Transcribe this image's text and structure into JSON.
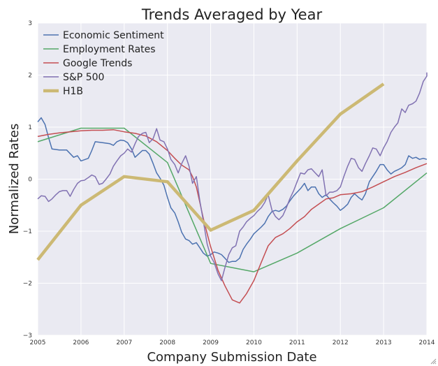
{
  "chart_data": {
    "type": "line",
    "title": "Trends Averaged by Year",
    "xlabel": "Company Submission Date",
    "ylabel": "Normalized Rates",
    "xlim": [
      2005,
      2014
    ],
    "ylim": [
      -3,
      3
    ],
    "x_ticks": [
      "2005",
      "2006",
      "2007",
      "2008",
      "2009",
      "2010",
      "2011",
      "2012",
      "2013",
      "2014"
    ],
    "y_ticks": [
      "3",
      "2",
      "1",
      "0",
      "−1",
      "−2",
      "−3"
    ],
    "grid": true,
    "legend_position": "top-left",
    "background": "#eaeaf2",
    "series": [
      {
        "name": "Economic Sentiment",
        "color": "#4c72b0",
        "width": 1.5,
        "points": [
          [
            2005.0,
            1.1
          ],
          [
            2005.08,
            1.18
          ],
          [
            2005.17,
            1.05
          ],
          [
            2005.25,
            0.8
          ],
          [
            2005.33,
            0.58
          ],
          [
            2005.5,
            0.56
          ],
          [
            2005.67,
            0.56
          ],
          [
            2005.83,
            0.42
          ],
          [
            2005.92,
            0.45
          ],
          [
            2006.0,
            0.35
          ],
          [
            2006.17,
            0.4
          ],
          [
            2006.25,
            0.55
          ],
          [
            2006.33,
            0.72
          ],
          [
            2006.5,
            0.7
          ],
          [
            2006.67,
            0.68
          ],
          [
            2006.75,
            0.65
          ],
          [
            2006.83,
            0.72
          ],
          [
            2006.92,
            0.75
          ],
          [
            2007.0,
            0.74
          ],
          [
            2007.08,
            0.7
          ],
          [
            2007.17,
            0.58
          ],
          [
            2007.25,
            0.42
          ],
          [
            2007.33,
            0.48
          ],
          [
            2007.42,
            0.55
          ],
          [
            2007.5,
            0.55
          ],
          [
            2007.58,
            0.48
          ],
          [
            2007.67,
            0.3
          ],
          [
            2007.75,
            0.12
          ],
          [
            2007.83,
            0.02
          ],
          [
            2007.92,
            -0.12
          ],
          [
            2008.0,
            -0.35
          ],
          [
            2008.08,
            -0.55
          ],
          [
            2008.17,
            -0.65
          ],
          [
            2008.25,
            -0.82
          ],
          [
            2008.33,
            -1.02
          ],
          [
            2008.42,
            -1.15
          ],
          [
            2008.5,
            -1.18
          ],
          [
            2008.58,
            -1.25
          ],
          [
            2008.67,
            -1.22
          ],
          [
            2008.75,
            -1.32
          ],
          [
            2008.83,
            -1.42
          ],
          [
            2008.92,
            -1.48
          ],
          [
            2009.0,
            -1.45
          ],
          [
            2009.08,
            -1.4
          ],
          [
            2009.17,
            -1.42
          ],
          [
            2009.25,
            -1.45
          ],
          [
            2009.33,
            -1.52
          ],
          [
            2009.42,
            -1.6
          ],
          [
            2009.5,
            -1.58
          ],
          [
            2009.58,
            -1.58
          ],
          [
            2009.67,
            -1.52
          ],
          [
            2009.75,
            -1.35
          ],
          [
            2009.83,
            -1.25
          ],
          [
            2009.92,
            -1.15
          ],
          [
            2010.0,
            -1.05
          ],
          [
            2010.17,
            -0.92
          ],
          [
            2010.25,
            -0.85
          ],
          [
            2010.33,
            -0.72
          ],
          [
            2010.42,
            -0.62
          ],
          [
            2010.5,
            -0.6
          ],
          [
            2010.58,
            -0.62
          ],
          [
            2010.67,
            -0.58
          ],
          [
            2010.75,
            -0.52
          ],
          [
            2010.83,
            -0.42
          ],
          [
            2010.92,
            -0.32
          ],
          [
            2011.0,
            -0.25
          ],
          [
            2011.08,
            -0.18
          ],
          [
            2011.17,
            -0.08
          ],
          [
            2011.25,
            -0.22
          ],
          [
            2011.33,
            -0.15
          ],
          [
            2011.42,
            -0.15
          ],
          [
            2011.5,
            -0.28
          ],
          [
            2011.58,
            -0.35
          ],
          [
            2011.67,
            -0.3
          ],
          [
            2011.75,
            -0.38
          ],
          [
            2011.83,
            -0.45
          ],
          [
            2011.92,
            -0.52
          ],
          [
            2012.0,
            -0.6
          ],
          [
            2012.08,
            -0.55
          ],
          [
            2012.17,
            -0.48
          ],
          [
            2012.25,
            -0.35
          ],
          [
            2012.33,
            -0.28
          ],
          [
            2012.42,
            -0.35
          ],
          [
            2012.5,
            -0.4
          ],
          [
            2012.58,
            -0.28
          ],
          [
            2012.67,
            -0.05
          ],
          [
            2012.75,
            0.05
          ],
          [
            2012.83,
            0.15
          ],
          [
            2012.92,
            0.28
          ],
          [
            2013.0,
            0.28
          ],
          [
            2013.08,
            0.18
          ],
          [
            2013.17,
            0.1
          ],
          [
            2013.25,
            0.15
          ],
          [
            2013.33,
            0.18
          ],
          [
            2013.42,
            0.22
          ],
          [
            2013.5,
            0.28
          ],
          [
            2013.58,
            0.45
          ],
          [
            2013.67,
            0.4
          ],
          [
            2013.75,
            0.42
          ],
          [
            2013.83,
            0.38
          ],
          [
            2013.92,
            0.4
          ],
          [
            2014.0,
            0.38
          ]
        ]
      },
      {
        "name": "Employment Rates",
        "color": "#55a868",
        "width": 1.5,
        "points": [
          [
            2005.0,
            0.72
          ],
          [
            2006.0,
            0.98
          ],
          [
            2007.0,
            0.98
          ],
          [
            2008.0,
            0.32
          ],
          [
            2009.0,
            -1.62
          ],
          [
            2010.0,
            -1.78
          ],
          [
            2011.0,
            -1.42
          ],
          [
            2012.0,
            -0.95
          ],
          [
            2013.0,
            -0.55
          ],
          [
            2014.0,
            0.12
          ]
        ]
      },
      {
        "name": "Google Trends",
        "color": "#c44e52",
        "width": 1.5,
        "points": [
          [
            2005.0,
            0.82
          ],
          [
            2005.25,
            0.86
          ],
          [
            2005.5,
            0.89
          ],
          [
            2005.75,
            0.91
          ],
          [
            2006.0,
            0.93
          ],
          [
            2006.25,
            0.94
          ],
          [
            2006.5,
            0.94
          ],
          [
            2006.75,
            0.95
          ],
          [
            2007.0,
            0.91
          ],
          [
            2007.25,
            0.88
          ],
          [
            2007.5,
            0.83
          ],
          [
            2007.75,
            0.72
          ],
          [
            2008.0,
            0.55
          ],
          [
            2008.17,
            0.4
          ],
          [
            2008.33,
            0.27
          ],
          [
            2008.5,
            0.18
          ],
          [
            2008.58,
            0.05
          ],
          [
            2008.67,
            -0.15
          ],
          [
            2008.75,
            -0.45
          ],
          [
            2008.83,
            -0.75
          ],
          [
            2008.92,
            -1.05
          ],
          [
            2009.0,
            -1.3
          ],
          [
            2009.17,
            -1.75
          ],
          [
            2009.33,
            -2.05
          ],
          [
            2009.5,
            -2.32
          ],
          [
            2009.67,
            -2.38
          ],
          [
            2009.83,
            -2.2
          ],
          [
            2010.0,
            -1.95
          ],
          [
            2010.17,
            -1.6
          ],
          [
            2010.33,
            -1.28
          ],
          [
            2010.5,
            -1.12
          ],
          [
            2010.67,
            -1.05
          ],
          [
            2010.83,
            -0.95
          ],
          [
            2011.0,
            -0.82
          ],
          [
            2011.17,
            -0.72
          ],
          [
            2011.33,
            -0.58
          ],
          [
            2011.5,
            -0.48
          ],
          [
            2011.67,
            -0.38
          ],
          [
            2011.83,
            -0.36
          ],
          [
            2012.0,
            -0.3
          ],
          [
            2012.25,
            -0.28
          ],
          [
            2012.5,
            -0.24
          ],
          [
            2012.75,
            -0.15
          ],
          [
            2013.0,
            -0.05
          ],
          [
            2013.25,
            0.05
          ],
          [
            2013.5,
            0.13
          ],
          [
            2013.75,
            0.22
          ],
          [
            2014.0,
            0.3
          ]
        ]
      },
      {
        "name": "S&P 500",
        "color": "#8172b2",
        "width": 1.5,
        "points": [
          [
            2005.0,
            -0.38
          ],
          [
            2005.08,
            -0.32
          ],
          [
            2005.17,
            -0.33
          ],
          [
            2005.25,
            -0.43
          ],
          [
            2005.33,
            -0.38
          ],
          [
            2005.42,
            -0.3
          ],
          [
            2005.5,
            -0.24
          ],
          [
            2005.58,
            -0.22
          ],
          [
            2005.67,
            -0.22
          ],
          [
            2005.75,
            -0.33
          ],
          [
            2005.83,
            -0.2
          ],
          [
            2005.92,
            -0.08
          ],
          [
            2006.0,
            -0.03
          ],
          [
            2006.08,
            -0.02
          ],
          [
            2006.17,
            0.03
          ],
          [
            2006.25,
            0.08
          ],
          [
            2006.33,
            0.05
          ],
          [
            2006.42,
            -0.1
          ],
          [
            2006.5,
            -0.08
          ],
          [
            2006.58,
            0.0
          ],
          [
            2006.67,
            0.1
          ],
          [
            2006.75,
            0.25
          ],
          [
            2006.83,
            0.35
          ],
          [
            2006.92,
            0.45
          ],
          [
            2007.0,
            0.5
          ],
          [
            2007.08,
            0.58
          ],
          [
            2007.17,
            0.52
          ],
          [
            2007.25,
            0.68
          ],
          [
            2007.33,
            0.82
          ],
          [
            2007.42,
            0.88
          ],
          [
            2007.5,
            0.9
          ],
          [
            2007.58,
            0.7
          ],
          [
            2007.67,
            0.78
          ],
          [
            2007.75,
            0.97
          ],
          [
            2007.83,
            0.75
          ],
          [
            2007.92,
            0.72
          ],
          [
            2008.0,
            0.58
          ],
          [
            2008.08,
            0.38
          ],
          [
            2008.17,
            0.28
          ],
          [
            2008.25,
            0.12
          ],
          [
            2008.33,
            0.3
          ],
          [
            2008.42,
            0.45
          ],
          [
            2008.5,
            0.25
          ],
          [
            2008.58,
            -0.08
          ],
          [
            2008.67,
            0.05
          ],
          [
            2008.75,
            -0.42
          ],
          [
            2008.83,
            -0.8
          ],
          [
            2008.92,
            -1.25
          ],
          [
            2009.0,
            -1.48
          ],
          [
            2009.08,
            -1.6
          ],
          [
            2009.17,
            -1.82
          ],
          [
            2009.25,
            -1.95
          ],
          [
            2009.33,
            -1.7
          ],
          [
            2009.42,
            -1.45
          ],
          [
            2009.5,
            -1.32
          ],
          [
            2009.58,
            -1.28
          ],
          [
            2009.67,
            -1.0
          ],
          [
            2009.75,
            -0.92
          ],
          [
            2009.83,
            -0.82
          ],
          [
            2009.92,
            -0.75
          ],
          [
            2010.0,
            -0.7
          ],
          [
            2010.08,
            -0.62
          ],
          [
            2010.17,
            -0.55
          ],
          [
            2010.25,
            -0.45
          ],
          [
            2010.33,
            -0.3
          ],
          [
            2010.42,
            -0.6
          ],
          [
            2010.5,
            -0.72
          ],
          [
            2010.58,
            -0.78
          ],
          [
            2010.67,
            -0.7
          ],
          [
            2010.75,
            -0.55
          ],
          [
            2010.83,
            -0.38
          ],
          [
            2010.92,
            -0.22
          ],
          [
            2011.0,
            -0.05
          ],
          [
            2011.08,
            0.12
          ],
          [
            2011.17,
            0.1
          ],
          [
            2011.25,
            0.18
          ],
          [
            2011.33,
            0.2
          ],
          [
            2011.42,
            0.12
          ],
          [
            2011.5,
            0.05
          ],
          [
            2011.58,
            0.18
          ],
          [
            2011.67,
            -0.32
          ],
          [
            2011.75,
            -0.25
          ],
          [
            2011.83,
            -0.25
          ],
          [
            2011.92,
            -0.22
          ],
          [
            2012.0,
            -0.15
          ],
          [
            2012.08,
            0.05
          ],
          [
            2012.17,
            0.25
          ],
          [
            2012.25,
            0.4
          ],
          [
            2012.33,
            0.38
          ],
          [
            2012.42,
            0.22
          ],
          [
            2012.5,
            0.15
          ],
          [
            2012.58,
            0.3
          ],
          [
            2012.67,
            0.45
          ],
          [
            2012.75,
            0.6
          ],
          [
            2012.83,
            0.58
          ],
          [
            2012.92,
            0.45
          ],
          [
            2013.0,
            0.6
          ],
          [
            2013.08,
            0.72
          ],
          [
            2013.17,
            0.9
          ],
          [
            2013.25,
            1.0
          ],
          [
            2013.33,
            1.08
          ],
          [
            2013.42,
            1.35
          ],
          [
            2013.5,
            1.28
          ],
          [
            2013.58,
            1.42
          ],
          [
            2013.67,
            1.45
          ],
          [
            2013.75,
            1.5
          ],
          [
            2013.83,
            1.65
          ],
          [
            2013.92,
            1.88
          ],
          [
            2014.0,
            1.98
          ],
          [
            2014.08,
            2.05
          ]
        ]
      },
      {
        "name": "H1B",
        "color": "#ccb974",
        "width": 4.5,
        "points": [
          [
            2005.0,
            -1.55
          ],
          [
            2006.0,
            -0.5
          ],
          [
            2007.0,
            0.05
          ],
          [
            2008.0,
            -0.05
          ],
          [
            2009.0,
            -0.98
          ],
          [
            2010.0,
            -0.6
          ],
          [
            2011.0,
            0.35
          ],
          [
            2012.0,
            1.25
          ],
          [
            2013.0,
            1.83
          ]
        ]
      }
    ]
  }
}
